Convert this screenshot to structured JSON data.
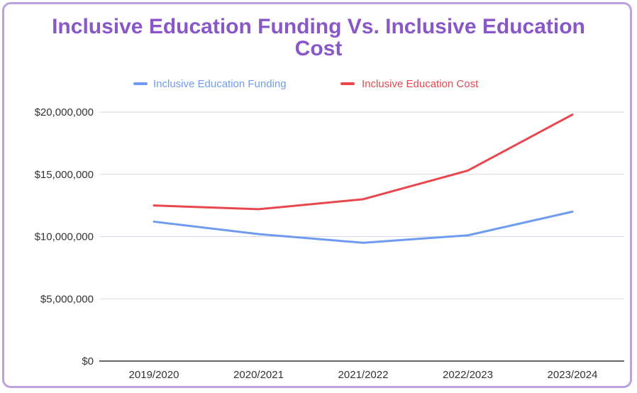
{
  "chart_data": {
    "type": "line",
    "title_lines": [
      "Inclusive Education Funding Vs. Inclusive Education",
      "Cost"
    ],
    "categories": [
      "2019/2020",
      "2020/2021",
      "2021/2022",
      "2022/2023",
      "2023/2024"
    ],
    "y_ticks": [
      "$0",
      "$5,000,000",
      "$10,000,000",
      "$15,000,000",
      "$20,000,000"
    ],
    "ylim": [
      0,
      20000000
    ],
    "grid": true,
    "legend_position": "top",
    "series": [
      {
        "name": "Inclusive Education Funding",
        "color": "#6f9bf0",
        "values": [
          11200000,
          10200000,
          9500000,
          10100000,
          12000000
        ]
      },
      {
        "name": "Inclusive Education Cost",
        "color": "#e8474e",
        "values": [
          12500000,
          12200000,
          13000000,
          15300000,
          19800000
        ]
      }
    ]
  }
}
